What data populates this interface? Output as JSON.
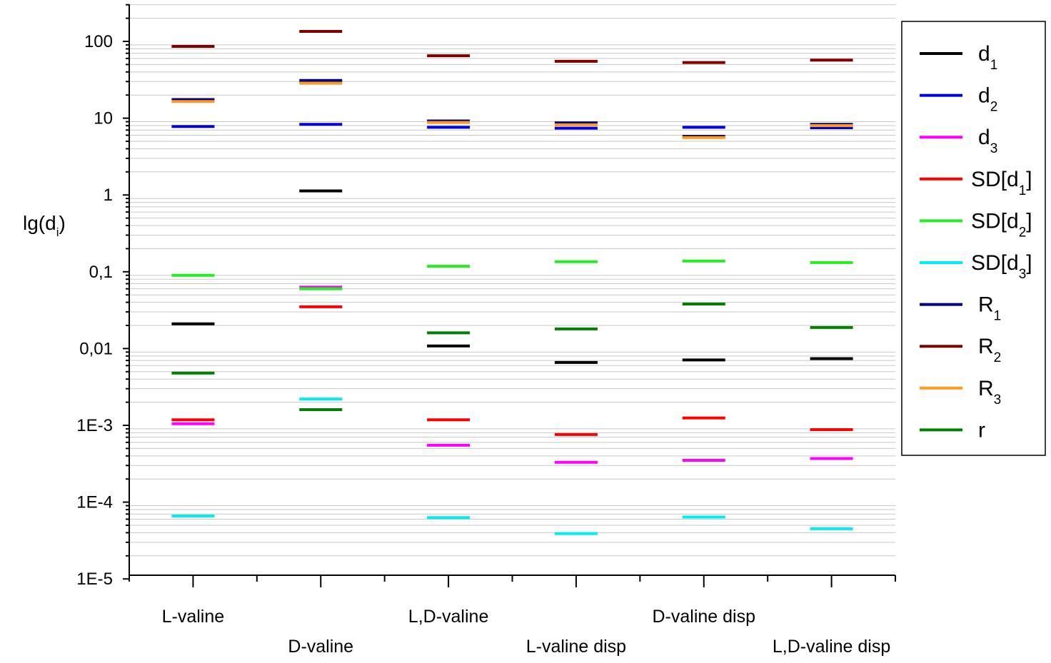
{
  "chart_data": {
    "type": "scatter",
    "marker": "horizontal-dash",
    "title": "",
    "xlabel": "",
    "ylabel": "lg(d",
    "ylabel_sub": "i",
    "ylabel_close": ")",
    "yscale": "log",
    "ylim": [
      1e-05,
      300
    ],
    "y_tick_labels": [
      {
        "value": 1e-05,
        "label": "1E-5"
      },
      {
        "value": 0.0001,
        "label": "1E-4"
      },
      {
        "value": 0.001,
        "label": "1E-3"
      },
      {
        "value": 0.01,
        "label": "0,01"
      },
      {
        "value": 0.1,
        "label": "0,1"
      },
      {
        "value": 1,
        "label": "1"
      },
      {
        "value": 10,
        "label": "10"
      },
      {
        "value": 100,
        "label": "100"
      }
    ],
    "grid": "horizontal minor gridlines on",
    "legend_placement": "right",
    "categories": [
      "L-valine",
      "D-valine",
      "L,D-valine",
      "L-valine disp",
      "D-valine disp",
      "L,D-valine disp"
    ],
    "series": [
      {
        "name": "d",
        "sub": "1",
        "color": "#000000",
        "values": [
          null,
          1.13,
          0.0108,
          0.0066,
          0.0071,
          0.0074
        ]
      },
      {
        "name": "d",
        "sub": "2",
        "color": "#0000dd",
        "values": [
          7.8,
          8.3,
          7.6,
          7.4,
          7.6,
          7.5
        ]
      },
      {
        "name": "d",
        "sub": "3",
        "color": "#ff00ff",
        "values": [
          0.00105,
          0.063,
          0.00055,
          0.00033,
          0.00035,
          0.00037
        ]
      },
      {
        "name": "SD[d",
        "sub": "1",
        "suffix": "]",
        "color": "#ff0000",
        "values": [
          0.00118,
          0.035,
          0.00118,
          0.00076,
          0.00125,
          0.00088
        ]
      },
      {
        "name": "SD[d",
        "sub": "2",
        "suffix": "]",
        "color": "#22ee22",
        "values": [
          0.09,
          0.06,
          0.118,
          0.135,
          0.138,
          0.132
        ]
      },
      {
        "name": "SD[d",
        "sub": "3",
        "suffix": "]",
        "color": "#00eeee",
        "values": [
          6.6e-05,
          0.0022,
          6.3e-05,
          3.9e-05,
          6.4e-05,
          4.5e-05
        ]
      },
      {
        "name": "R",
        "sub": "1",
        "color": "#000080",
        "values": [
          17.5,
          31,
          9.2,
          8.7,
          5.8,
          8.3
        ]
      },
      {
        "name": "R",
        "sub": "2",
        "color": "#800000",
        "values": [
          86,
          135,
          65,
          55,
          53,
          57
        ]
      },
      {
        "name": "R",
        "sub": "3",
        "color": "#ff9922",
        "values": [
          16.5,
          28.5,
          8.8,
          8.2,
          5.6,
          8
        ]
      },
      {
        "name": "r",
        "sub": "",
        "color": "#008000",
        "values": [
          0.0048,
          0.0016,
          0.016,
          0.018,
          0.038,
          0.0188
        ]
      },
      {
        "name": "d",
        "sub": "1",
        "color": "#000000",
        "values": [
          0.021,
          null,
          null,
          null,
          null,
          null
        ],
        "legend": false
      }
    ]
  }
}
